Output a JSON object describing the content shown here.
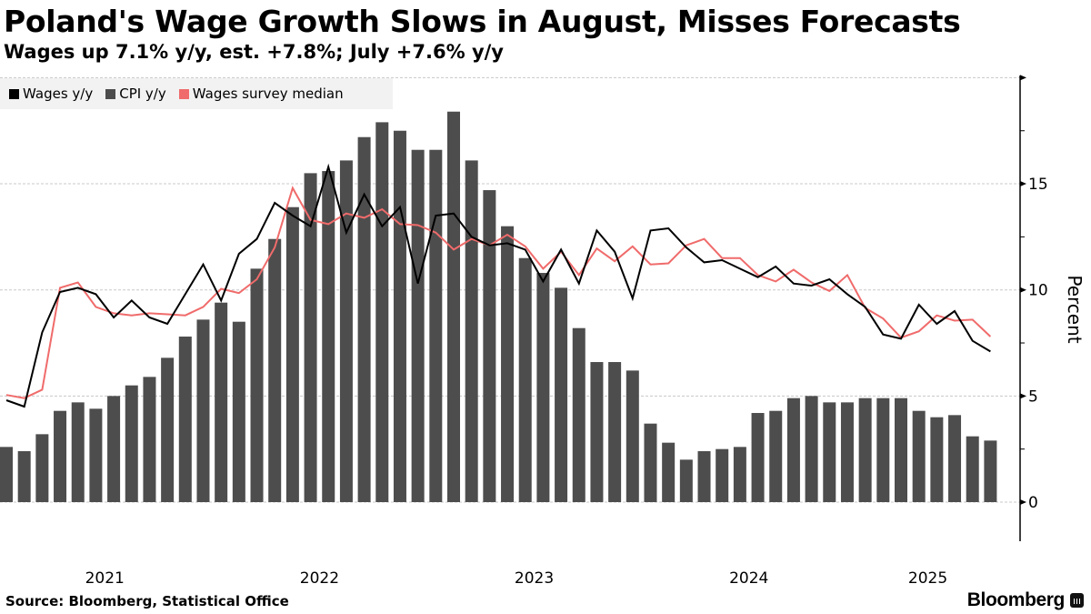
{
  "header": {
    "title": "Poland's Wage Growth Slows in August, Misses Forecasts",
    "subtitle": "Wages up 7.1% y/y, est. +7.8%; July +7.6% y/y"
  },
  "legend": [
    {
      "label": "Wages y/y",
      "color": "#000000"
    },
    {
      "label": "CPI y/y",
      "color": "#4d4d4d"
    },
    {
      "label": "Wages survey median",
      "color": "#f06b6b"
    }
  ],
  "footer": {
    "source": "Source:  Bloomberg, Statistical Office",
    "brand": "Bloomberg"
  },
  "chart_data": {
    "type": "bar+line",
    "title": "Poland's Wage Growth Slows in August, Misses Forecasts",
    "subtitle": "Wages up 7.1% y/y, est. +7.8%; July +7.6% y/y",
    "xlabel": "",
    "ylabel": "Percent",
    "ylim": [
      -1.8,
      20
    ],
    "yticks": [
      0,
      5,
      10,
      15
    ],
    "y_axis_position": "right",
    "grid": true,
    "legend_position": "top-left",
    "x_start": "2021-01",
    "x_end": "2025-08",
    "frequency": "monthly",
    "xtick_labels": [
      "2021",
      "2022",
      "2023",
      "2024",
      "2025"
    ],
    "series": [
      {
        "name": "CPI y/y",
        "type": "bar",
        "color": "#4d4d4d",
        "values": [
          2.6,
          2.4,
          3.2,
          4.3,
          4.7,
          4.4,
          5.0,
          5.5,
          5.9,
          6.8,
          7.8,
          8.6,
          9.4,
          8.5,
          11.0,
          12.4,
          13.9,
          15.5,
          15.6,
          16.1,
          17.2,
          17.9,
          17.5,
          16.6,
          16.6,
          18.4,
          16.1,
          14.7,
          13.0,
          11.5,
          10.8,
          10.1,
          8.2,
          6.6,
          6.6,
          6.2,
          3.7,
          2.8,
          2.0,
          2.4,
          2.5,
          2.6,
          4.2,
          4.3,
          4.9,
          5.0,
          4.7,
          4.7,
          4.9,
          4.9,
          4.9,
          4.3,
          4.0,
          4.1,
          3.1,
          2.9
        ]
      },
      {
        "name": "Wages y/y",
        "type": "line",
        "color": "#000000",
        "values": [
          4.8,
          4.5,
          8.0,
          9.9,
          10.1,
          9.8,
          8.7,
          9.5,
          8.7,
          8.4,
          9.8,
          11.2,
          9.5,
          11.7,
          12.4,
          14.1,
          13.5,
          13.0,
          15.8,
          12.7,
          14.5,
          13.0,
          13.9,
          10.3,
          13.5,
          13.6,
          12.5,
          12.1,
          12.2,
          11.9,
          10.4,
          11.9,
          10.3,
          12.8,
          11.8,
          9.6,
          12.8,
          12.9,
          12.0,
          11.3,
          11.4,
          11.0,
          10.6,
          11.1,
          10.3,
          10.2,
          10.5,
          9.8,
          9.2,
          7.9,
          7.7,
          9.3,
          8.4,
          9.0,
          7.6,
          7.1
        ]
      },
      {
        "name": "Wages survey median",
        "type": "line",
        "color": "#f06b6b",
        "values": [
          5.05,
          4.9,
          5.3,
          10.1,
          10.35,
          9.2,
          8.9,
          8.8,
          8.9,
          8.85,
          8.8,
          9.2,
          10.05,
          9.85,
          10.5,
          12.0,
          14.8,
          13.3,
          13.1,
          13.6,
          13.4,
          13.8,
          13.1,
          13.05,
          12.7,
          11.9,
          12.4,
          12.1,
          12.6,
          12.05,
          11.0,
          11.8,
          10.7,
          11.95,
          11.35,
          12.05,
          11.2,
          11.25,
          12.1,
          12.4,
          11.5,
          11.5,
          10.7,
          10.4,
          10.95,
          10.35,
          9.95,
          10.7,
          9.15,
          8.65,
          7.75,
          8.05,
          8.8,
          8.55,
          8.6,
          7.8
        ]
      }
    ]
  }
}
